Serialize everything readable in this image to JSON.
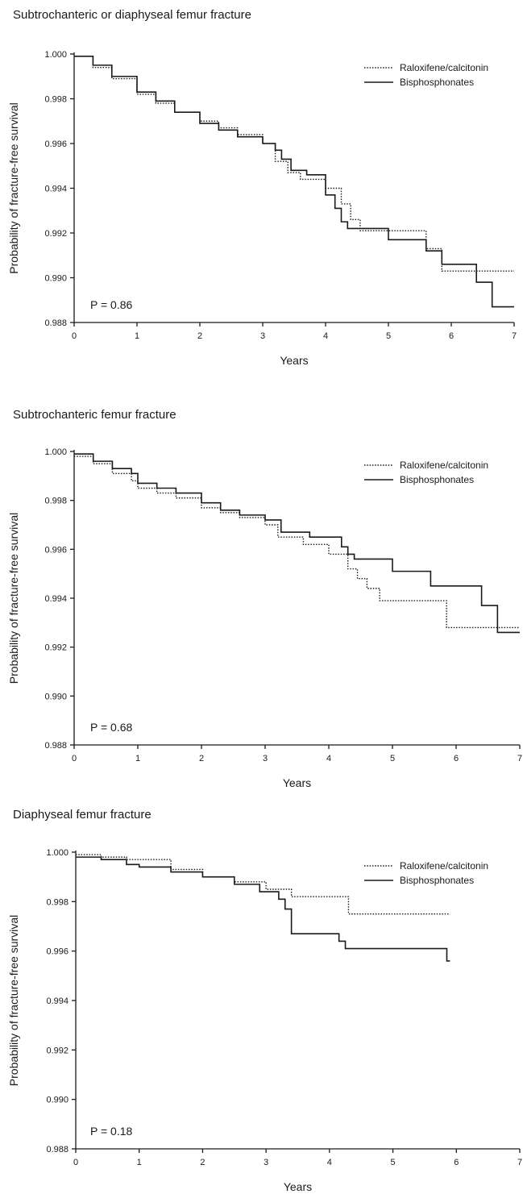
{
  "chart_data": [
    {
      "type": "line",
      "title": "Subtrochanteric or diaphyseal femur fracture",
      "xlabel": "Years",
      "ylabel": "Probability of fracture-free survival",
      "xlim": [
        0,
        7
      ],
      "ylim": [
        0.988,
        1.0
      ],
      "xticks": [
        "0",
        "1",
        "2",
        "3",
        "4",
        "5",
        "6",
        "7"
      ],
      "yticks": [
        "0.988",
        "0.990",
        "0.992",
        "0.994",
        "0.996",
        "0.998",
        "1.000"
      ],
      "grid": false,
      "legend_position": "top-right",
      "annotation": "P = 0.86",
      "series": [
        {
          "name": "Raloxifene/calcitonin",
          "style": "dotted",
          "x": [
            0,
            0.3,
            0.6,
            1.0,
            1.3,
            1.6,
            2.0,
            2.3,
            2.6,
            3.0,
            3.2,
            3.4,
            3.6,
            4.0,
            4.25,
            4.4,
            4.55,
            5.0,
            5.3,
            5.6,
            5.85,
            6.3,
            7.0
          ],
          "y": [
            0.9999,
            0.9994,
            0.9989,
            0.9982,
            0.9978,
            0.9974,
            0.997,
            0.9967,
            0.9964,
            0.996,
            0.9952,
            0.9947,
            0.9944,
            0.994,
            0.9933,
            0.9926,
            0.9921,
            0.9921,
            0.9921,
            0.9913,
            0.9903,
            0.9903,
            0.9903
          ]
        },
        {
          "name": "Bisphosphonates",
          "style": "solid",
          "x": [
            0,
            0.3,
            0.6,
            1.0,
            1.3,
            1.6,
            2.0,
            2.3,
            2.6,
            3.0,
            3.2,
            3.3,
            3.45,
            3.7,
            4.0,
            4.15,
            4.25,
            4.35,
            5.0,
            5.6,
            5.85,
            6.4,
            6.65,
            7.0
          ],
          "y": [
            0.9999,
            0.9995,
            0.999,
            0.9983,
            0.9979,
            0.9974,
            0.9969,
            0.9966,
            0.9963,
            0.996,
            0.9957,
            0.9953,
            0.9948,
            0.9946,
            0.9937,
            0.9931,
            0.9925,
            0.9922,
            0.9917,
            0.9912,
            0.9906,
            0.9898,
            0.9887,
            0.9887
          ]
        }
      ]
    },
    {
      "type": "line",
      "title": "Subtrochanteric femur fracture",
      "xlabel": "Years",
      "ylabel": "Probability of fracture-free survival",
      "xlim": [
        0,
        7
      ],
      "ylim": [
        0.988,
        1.0
      ],
      "xticks": [
        "0",
        "1",
        "2",
        "3",
        "4",
        "5",
        "6",
        "7"
      ],
      "yticks": [
        "0.988",
        "0.990",
        "0.992",
        "0.994",
        "0.996",
        "0.998",
        "1.000"
      ],
      "grid": false,
      "legend_position": "top-right",
      "annotation": "P = 0.68",
      "series": [
        {
          "name": "Raloxifene/calcitonin",
          "style": "dotted",
          "x": [
            0,
            0.3,
            0.6,
            0.9,
            1.0,
            1.3,
            1.6,
            2.0,
            2.3,
            2.6,
            3.0,
            3.2,
            3.6,
            4.0,
            4.3,
            4.45,
            4.6,
            4.8,
            5.85,
            7.0
          ],
          "y": [
            0.9998,
            0.9995,
            0.9991,
            0.9988,
            0.9985,
            0.9983,
            0.9981,
            0.9977,
            0.9975,
            0.9973,
            0.997,
            0.9965,
            0.9962,
            0.9958,
            0.9952,
            0.9948,
            0.9944,
            0.9939,
            0.9928,
            0.9928
          ]
        },
        {
          "name": "Bisphosphonates",
          "style": "solid",
          "x": [
            0,
            0.3,
            0.6,
            0.9,
            1.0,
            1.3,
            1.6,
            2.0,
            2.3,
            2.6,
            3.0,
            3.25,
            3.7,
            4.2,
            4.3,
            4.4,
            5.0,
            5.6,
            6.4,
            6.65,
            7.0
          ],
          "y": [
            0.9999,
            0.9996,
            0.9993,
            0.9991,
            0.9987,
            0.9985,
            0.9983,
            0.9979,
            0.9976,
            0.9974,
            0.9972,
            0.9967,
            0.9965,
            0.9961,
            0.9958,
            0.9956,
            0.9951,
            0.9945,
            0.9937,
            0.9926,
            0.9926
          ]
        }
      ]
    },
    {
      "type": "line",
      "title": "Diaphyseal femur fracture",
      "xlabel": "Years",
      "ylabel": "Probability of fracture-free survival",
      "xlim": [
        0,
        7
      ],
      "ylim": [
        0.988,
        1.0
      ],
      "xticks": [
        "0",
        "1",
        "2",
        "3",
        "4",
        "5",
        "6",
        "7"
      ],
      "yticks": [
        "0.988",
        "0.990",
        "0.992",
        "0.994",
        "0.996",
        "0.998",
        "1.000"
      ],
      "grid": false,
      "legend_position": "top-right",
      "annotation": "P = 0.18",
      "series": [
        {
          "name": "Raloxifene/calcitonin",
          "style": "dotted",
          "x": [
            0,
            0.4,
            0.8,
            1.0,
            1.5,
            2.0,
            2.5,
            3.0,
            3.4,
            4.3,
            5.9
          ],
          "y": [
            0.9999,
            0.9998,
            0.9997,
            0.9997,
            0.9993,
            0.999,
            0.9988,
            0.9985,
            0.9982,
            0.9975,
            0.9975
          ]
        },
        {
          "name": "Bisphosphonates",
          "style": "solid",
          "x": [
            0,
            0.4,
            0.8,
            1.0,
            1.5,
            2.0,
            2.5,
            2.9,
            3.2,
            3.3,
            3.4,
            4.15,
            4.25,
            5.85,
            5.9
          ],
          "y": [
            0.9998,
            0.9997,
            0.9995,
            0.9994,
            0.9992,
            0.999,
            0.9987,
            0.9984,
            0.9981,
            0.9977,
            0.9967,
            0.9964,
            0.9961,
            0.9956,
            0.9956
          ]
        }
      ]
    }
  ]
}
